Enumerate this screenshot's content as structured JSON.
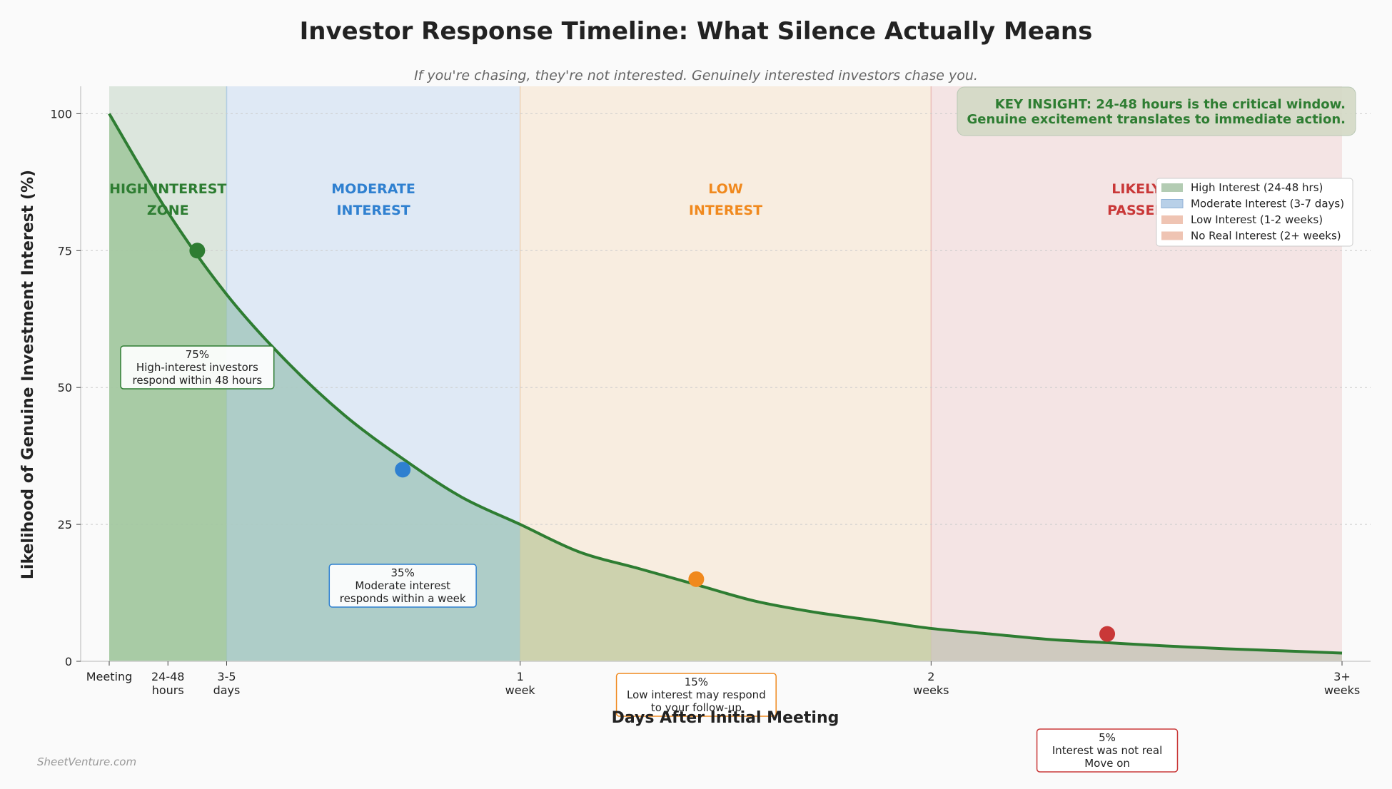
{
  "chart_data": {
    "type": "line",
    "title": "Investor Response Timeline: What Silence Actually Means",
    "subtitle": "If you're chasing, they're not interested. Genuinely interested investors chase you.",
    "xlabel": "Days After Initial Meeting",
    "ylabel": "Likelihood of Genuine Investment Interest (%)",
    "xlim": [
      0,
      21
    ],
    "ylim": [
      0,
      105
    ],
    "x_ticks": [
      {
        "x": 0,
        "label": "Meeting"
      },
      {
        "x": 1,
        "label": "24-48\nhours"
      },
      {
        "x": 2,
        "label": "3-5\ndays"
      },
      {
        "x": 7,
        "label": "1\nweek"
      },
      {
        "x": 14,
        "label": "2\nweeks"
      },
      {
        "x": 21,
        "label": "3+\nweeks"
      }
    ],
    "y_ticks": [
      0,
      25,
      50,
      75,
      100
    ],
    "grid": true,
    "curve": {
      "color": "#2e7d32",
      "x": [
        0,
        1,
        2,
        3,
        4,
        5,
        6,
        7,
        8,
        9,
        10,
        11,
        12,
        13,
        14,
        15,
        16,
        17,
        18,
        19,
        20,
        21
      ],
      "y": [
        100,
        82,
        67,
        55,
        45,
        37,
        30,
        25,
        20,
        17,
        14,
        11,
        9,
        7.5,
        6,
        5,
        4,
        3.4,
        2.8,
        2.3,
        1.9,
        1.5
      ]
    },
    "zones": [
      {
        "x_start": 0,
        "x_end": 2,
        "label": "HIGH INTEREST\nZONE",
        "color": "#2e7d32",
        "fill": "#dce6dd",
        "legend": "High Interest (24-48 hrs)"
      },
      {
        "x_start": 2,
        "x_end": 7,
        "label": "MODERATE\nINTEREST",
        "color": "#2f80d0",
        "fill": "#dfe9f5",
        "legend": "Moderate Interest (3-7 days)"
      },
      {
        "x_start": 7,
        "x_end": 14,
        "label": "LOW\nINTEREST",
        "color": "#f0891e",
        "fill": "#f8ede0",
        "legend": "Low Interest (1-2 weeks)"
      },
      {
        "x_start": 14,
        "x_end": 21,
        "label": "LIKELY\nPASSED",
        "color": "#c93838",
        "fill": "#f4e4e4",
        "legend": "No Real Interest (2+ weeks)"
      }
    ],
    "points": [
      {
        "x": 1.5,
        "y": 75,
        "color": "#2e7d32",
        "text": "75%\nHigh-interest investors\nrespond within 48 hours",
        "border": "#2e7d32"
      },
      {
        "x": 5,
        "y": 35,
        "color": "#2f80d0",
        "text": "35%\nModerate interest\nresponds within a week",
        "border": "#2f80d0"
      },
      {
        "x": 10,
        "y": 15,
        "color": "#f0891e",
        "text": "15%\nLow interest may respond\nto your follow-up",
        "border": "#f0891e"
      },
      {
        "x": 17,
        "y": 5,
        "color": "#c93838",
        "text": "5%\nInterest was not real\nMove on",
        "border": "#c93838"
      }
    ],
    "key_insight": "KEY INSIGHT: 24-48 hours is the critical window.\nGenuine excitement translates to immediate action.",
    "legend_position": "upper-right",
    "watermark": "SheetVenture.com"
  }
}
